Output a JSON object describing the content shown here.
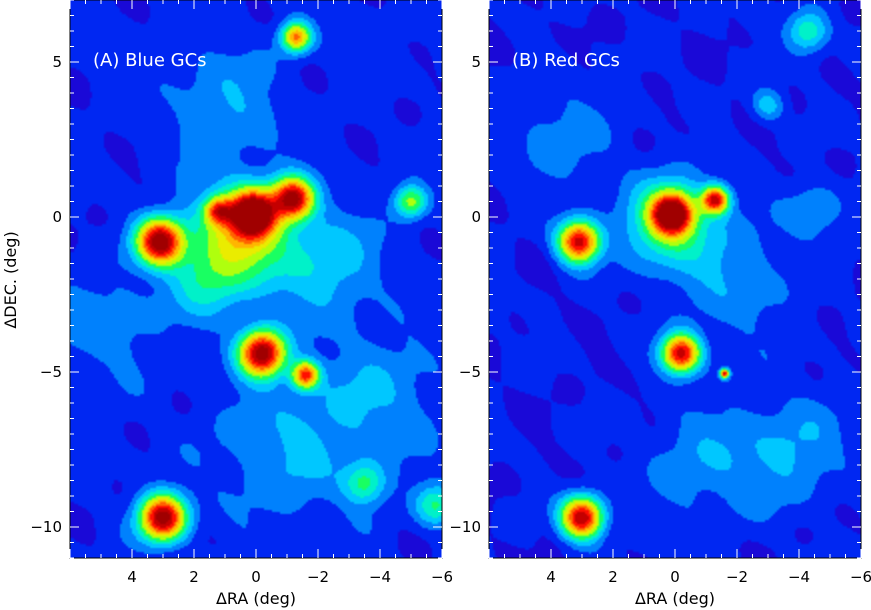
{
  "figure": {
    "x_axis_label": "ΔRA (deg)",
    "y_axis_label": "ΔDEC. (deg)"
  },
  "chart_data": [
    {
      "type": "heatmap",
      "title": "(A) Blue GCs",
      "xlabel": "ΔRA (deg)",
      "ylabel": "ΔDEC. (deg)",
      "xlim": [
        6,
        -6
      ],
      "ylim": [
        -11,
        7
      ],
      "x_ticks": [
        4,
        2,
        0,
        -2,
        -4,
        -6
      ],
      "x_tick_labels": [
        "4",
        "2",
        "0",
        "−2",
        "−4",
        "−6"
      ],
      "y_ticks": [
        5,
        0,
        -5,
        -10
      ],
      "y_tick_labels": [
        "5",
        "0",
        "−5",
        "−10"
      ],
      "colormap": [
        "#2a00c8",
        "#0018f0",
        "#0090ff",
        "#00e8ff",
        "#00ff70",
        "#c8ff00",
        "#ffe000",
        "#ff7000",
        "#ff0000",
        "#a00000"
      ],
      "background_level": 0.07,
      "peaks": [
        {
          "x": 3.1,
          "y": -0.8,
          "amplitude": 1.0,
          "width": 0.5
        },
        {
          "x": 0.1,
          "y": 0.1,
          "amplitude": 1.05,
          "width": 0.5
        },
        {
          "x": 1.2,
          "y": 0.2,
          "amplitude": 0.55,
          "width": 0.3
        },
        {
          "x": -1.2,
          "y": 0.6,
          "amplitude": 0.9,
          "width": 0.45
        },
        {
          "x": 0.5,
          "y": -0.6,
          "amplitude": 0.45,
          "width": 1.1
        },
        {
          "x": -0.2,
          "y": -4.4,
          "amplitude": 1.0,
          "width": 0.5
        },
        {
          "x": -1.6,
          "y": -5.1,
          "amplitude": 0.75,
          "width": 0.3
        },
        {
          "x": -1.3,
          "y": 5.8,
          "amplitude": 0.65,
          "width": 0.32
        },
        {
          "x": -5.0,
          "y": 0.5,
          "amplitude": 0.42,
          "width": 0.35
        },
        {
          "x": 3.0,
          "y": -9.7,
          "amplitude": 1.0,
          "width": 0.5
        },
        {
          "x": -3.5,
          "y": -8.6,
          "amplitude": 0.3,
          "width": 0.45
        },
        {
          "x": -5.8,
          "y": -9.3,
          "amplitude": 0.3,
          "width": 0.45
        },
        {
          "x": 1.6,
          "y": -2.0,
          "amplitude": 0.2,
          "width": 0.9
        },
        {
          "x": -2.2,
          "y": -1.5,
          "amplitude": 0.18,
          "width": 1.2
        },
        {
          "x": -4.0,
          "y": -5.8,
          "amplitude": 0.12,
          "width": 1.4
        },
        {
          "x": -1.0,
          "y": -7.5,
          "amplitude": 0.13,
          "width": 1.6
        },
        {
          "x": 1.0,
          "y": 3.6,
          "amplitude": 0.12,
          "width": 1.3
        },
        {
          "x": 4.8,
          "y": -3.5,
          "amplitude": 0.1,
          "width": 1.2
        }
      ]
    },
    {
      "type": "heatmap",
      "title": "(B) Red GCs",
      "xlabel": "ΔRA (deg)",
      "ylabel": "",
      "xlim": [
        6,
        -6
      ],
      "ylim": [
        -11,
        7
      ],
      "x_ticks": [
        4,
        2,
        0,
        -2,
        -4,
        -6
      ],
      "x_tick_labels": [
        "4",
        "2",
        "0",
        "−2",
        "−4",
        "−6"
      ],
      "y_ticks": [
        5,
        0,
        -5,
        -10
      ],
      "y_tick_labels": [
        "5",
        "0",
        "−5",
        "−10"
      ],
      "colormap": [
        "#2a00c8",
        "#0018f0",
        "#0090ff",
        "#00e8ff",
        "#00ff70",
        "#c8ff00",
        "#ffe000",
        "#ff7000",
        "#ff0000",
        "#a00000"
      ],
      "background_level": 0.06,
      "peaks": [
        {
          "x": 3.1,
          "y": -0.8,
          "amplitude": 0.9,
          "width": 0.45
        },
        {
          "x": 0.1,
          "y": 0.1,
          "amplitude": 1.0,
          "width": 0.45
        },
        {
          "x": -1.3,
          "y": 0.55,
          "amplitude": 0.85,
          "width": 0.3
        },
        {
          "x": 0.2,
          "y": -0.2,
          "amplitude": 0.35,
          "width": 1.0
        },
        {
          "x": -0.2,
          "y": -4.4,
          "amplitude": 0.9,
          "width": 0.42
        },
        {
          "x": -1.6,
          "y": -5.05,
          "amplitude": 0.85,
          "width": 0.1
        },
        {
          "x": 3.0,
          "y": -9.7,
          "amplitude": 0.95,
          "width": 0.45
        },
        {
          "x": -4.3,
          "y": 6.0,
          "amplitude": 0.3,
          "width": 0.45
        },
        {
          "x": -3.0,
          "y": 3.6,
          "amplitude": 0.2,
          "width": 0.35
        },
        {
          "x": -4.5,
          "y": 0.2,
          "amplitude": 0.15,
          "width": 0.6
        },
        {
          "x": -3.8,
          "y": -7.5,
          "amplitude": 0.14,
          "width": 1.2
        },
        {
          "x": -1.0,
          "y": -8.0,
          "amplitude": 0.12,
          "width": 1.3
        },
        {
          "x": 3.8,
          "y": 2.5,
          "amplitude": 0.1,
          "width": 1.2
        },
        {
          "x": -2.0,
          "y": -2.0,
          "amplitude": 0.12,
          "width": 1.3
        }
      ]
    }
  ]
}
